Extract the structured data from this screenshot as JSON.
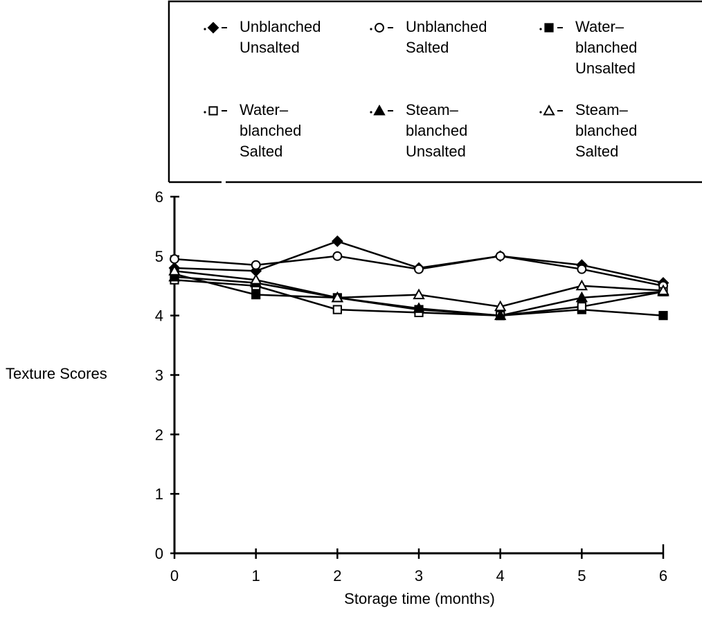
{
  "chart_data": {
    "type": "line",
    "title": "",
    "xlabel": "Storage time (months)",
    "ylabel": "Texture Scores",
    "x": [
      0,
      1,
      2,
      3,
      4,
      5,
      6
    ],
    "xlim": [
      0,
      6
    ],
    "ylim": [
      0,
      6
    ],
    "xticks": [
      "0",
      "1",
      "2",
      "3",
      "4",
      "5",
      "6"
    ],
    "yticks": [
      "0",
      "1",
      "2",
      "3",
      "4",
      "5",
      "6"
    ],
    "grid": false,
    "legend_position": "top",
    "series": [
      {
        "name": [
          "Unblanched",
          "Unsalted"
        ],
        "marker": "diamond-filled",
        "values": [
          4.8,
          4.75,
          5.25,
          4.8,
          5.0,
          4.85,
          4.55
        ]
      },
      {
        "name": [
          "Unblanched",
          "Salted"
        ],
        "marker": "circle-open",
        "values": [
          4.95,
          4.85,
          5.0,
          4.78,
          5.0,
          4.78,
          4.5
        ]
      },
      {
        "name": [
          "Water–",
          "blanched",
          "Unsalted"
        ],
        "marker": "square-filled",
        "values": [
          4.7,
          4.35,
          4.3,
          4.1,
          4.0,
          4.1,
          4.0
        ]
      },
      {
        "name": [
          "Water–",
          "blanched",
          "Salted"
        ],
        "marker": "square-open",
        "values": [
          4.6,
          4.5,
          4.1,
          4.05,
          4.0,
          4.15,
          4.4
        ]
      },
      {
        "name": [
          "Steam–",
          "blanched",
          "Unsalted"
        ],
        "marker": "triangle-filled",
        "values": [
          4.65,
          4.55,
          4.3,
          4.12,
          4.0,
          4.3,
          4.4
        ]
      },
      {
        "name": [
          "Steam–",
          "blanched",
          "Salted"
        ],
        "marker": "triangle-open",
        "values": [
          4.75,
          4.6,
          4.3,
          4.35,
          4.15,
          4.5,
          4.42
        ]
      }
    ]
  }
}
